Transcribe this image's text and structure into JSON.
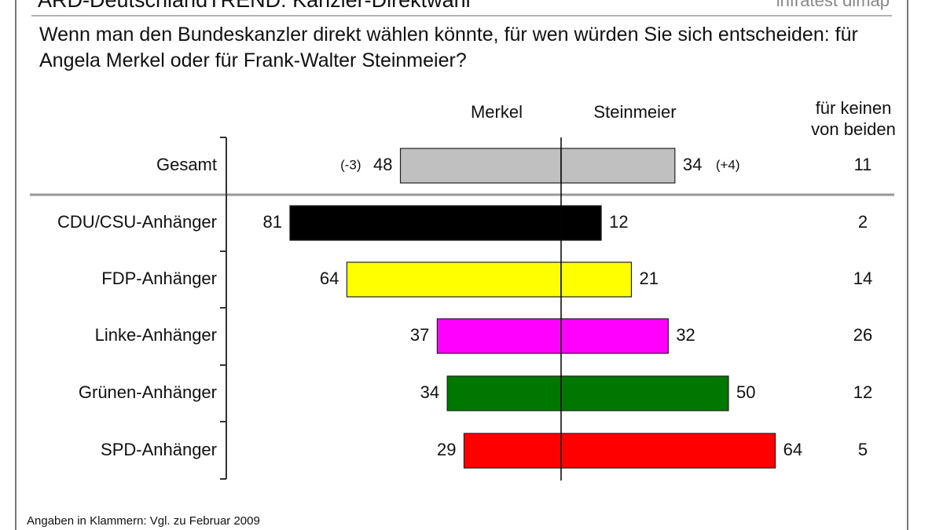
{
  "chart_data": {
    "type": "diverging-bar",
    "title": "ARD-DeutschlandTREND: Kanzler-Direktwahl",
    "source": "infratest dimap",
    "subtitle": "Wenn man den Bundeskanzler direkt wählen könnte, für wen würden Sie sich entscheiden: für Angela Merkel oder für Frank-Walter Steinmeier?",
    "categories": [
      "Gesamt",
      "CDU/CSU-Anhänger",
      "FDP-Anhänger",
      "Linke-Anhänger",
      "Grünen-Anhänger",
      "SPD-Anhänger"
    ],
    "colors": [
      "#c0c0c0",
      "#000000",
      "#ffff00",
      "#ff00ff",
      "#007800",
      "#ff0000"
    ],
    "series": [
      {
        "name": "Merkel",
        "values": [
          48,
          81,
          64,
          37,
          34,
          29
        ]
      },
      {
        "name": "Steinmeier",
        "values": [
          34,
          12,
          21,
          32,
          50,
          64
        ]
      },
      {
        "name": "für keinen von beiden",
        "values": [
          11,
          2,
          14,
          26,
          12,
          5
        ]
      }
    ],
    "annotations": [
      "(-3)",
      "(+4)"
    ],
    "note": "Angaben in Klammern: Vgl. zu Februar 2009"
  }
}
